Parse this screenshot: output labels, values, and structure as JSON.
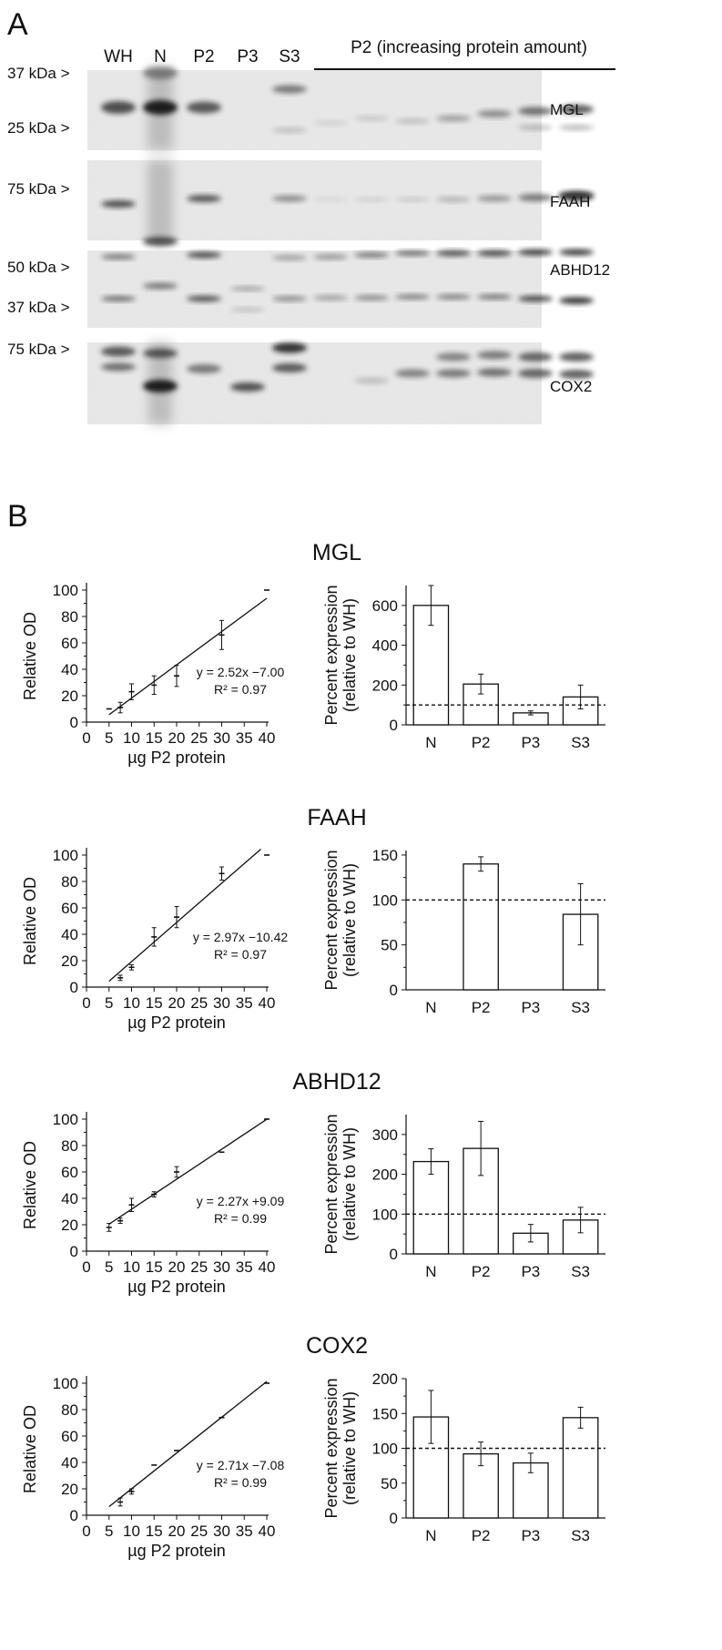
{
  "panelA": {
    "letter": "A",
    "lanes": [
      "WH",
      "N",
      "P2",
      "P3",
      "S3"
    ],
    "p2_header": "P2 (increasing protein amount)",
    "blots": [
      {
        "protein": "MGL",
        "markers": [
          "37 kDa >",
          "25 kDa >"
        ]
      },
      {
        "protein": "FAAH",
        "markers": [
          "75 kDa >"
        ]
      },
      {
        "protein": "ABHD12",
        "markers": [
          "50 kDa >",
          "37 kDa >"
        ]
      },
      {
        "protein": "COX2",
        "markers": [
          "75 kDa >"
        ]
      }
    ]
  },
  "panelB": {
    "letter": "B"
  },
  "chart_data": [
    {
      "protein": "MGL",
      "title": "MGL",
      "line_chart": {
        "type": "scatter",
        "xlabel": "µg P2 protein",
        "ylabel": "Relative OD",
        "xlim": [
          0,
          40
        ],
        "ylim": [
          0,
          100
        ],
        "xticks": [
          0,
          5,
          10,
          15,
          20,
          25,
          30,
          35,
          40
        ],
        "yticks": [
          0,
          20,
          40,
          60,
          80,
          100
        ],
        "points": [
          {
            "x": 5,
            "y": 10,
            "err": 0
          },
          {
            "x": 7.5,
            "y": 11,
            "err": 4
          },
          {
            "x": 10,
            "y": 23,
            "err": 6
          },
          {
            "x": 15,
            "y": 28,
            "err": 7
          },
          {
            "x": 20,
            "y": 35,
            "err": 8
          },
          {
            "x": 30,
            "y": 66,
            "err": 11
          },
          {
            "x": 40,
            "y": 100,
            "err": 0
          }
        ],
        "fit": {
          "slope": 2.52,
          "intercept": -7.0,
          "x_range": [
            5,
            40
          ]
        },
        "equation": "y = 2.52x −7.00",
        "r2": "R² = 0.97"
      },
      "bar_chart": {
        "type": "bar",
        "ylabel": "Percent expression\n(relative to WH)",
        "categories": [
          "N",
          "P2",
          "P3",
          "S3"
        ],
        "values": [
          600,
          205,
          60,
          140
        ],
        "errors": [
          100,
          50,
          10,
          60
        ],
        "ylim": [
          0,
          700
        ],
        "yticks": [
          0,
          200,
          400,
          600
        ],
        "reference_line": 100
      }
    },
    {
      "protein": "FAAH",
      "title": "FAAH",
      "line_chart": {
        "type": "scatter",
        "xlabel": "µg P2 protein",
        "ylabel": "Relative OD",
        "xlim": [
          0,
          40
        ],
        "ylim": [
          0,
          100
        ],
        "xticks": [
          0,
          5,
          10,
          15,
          20,
          25,
          30,
          35,
          40
        ],
        "yticks": [
          0,
          20,
          40,
          60,
          80,
          100
        ],
        "points": [
          {
            "x": 7.5,
            "y": 7,
            "err": 2
          },
          {
            "x": 10,
            "y": 15,
            "err": 2
          },
          {
            "x": 15,
            "y": 38,
            "err": 7
          },
          {
            "x": 20,
            "y": 53,
            "err": 8
          },
          {
            "x": 30,
            "y": 86,
            "err": 5
          },
          {
            "x": 40,
            "y": 100,
            "err": 0
          }
        ],
        "fit": {
          "slope": 2.97,
          "intercept": -10.42,
          "x_range": [
            5,
            38.7
          ]
        },
        "equation": "y = 2.97x −10.42",
        "r2": "R² = 0.97"
      },
      "bar_chart": {
        "type": "bar",
        "ylabel": "Percent expression\n(relative to WH)",
        "categories": [
          "N",
          "P2",
          "P3",
          "S3"
        ],
        "values": [
          null,
          140,
          null,
          84
        ],
        "errors": [
          null,
          8,
          null,
          34
        ],
        "ylim": [
          0,
          155
        ],
        "yticks": [
          0,
          50,
          100,
          150
        ],
        "reference_line": 100
      }
    },
    {
      "protein": "ABHD12",
      "title": "ABHD12",
      "line_chart": {
        "type": "scatter",
        "xlabel": "µg P2 protein",
        "ylabel": "Relative OD",
        "xlim": [
          0,
          40
        ],
        "ylim": [
          0,
          100
        ],
        "xticks": [
          0,
          5,
          10,
          15,
          20,
          25,
          30,
          35,
          40
        ],
        "yticks": [
          0,
          20,
          40,
          60,
          80,
          100
        ],
        "points": [
          {
            "x": 5,
            "y": 18,
            "err": 3
          },
          {
            "x": 7.5,
            "y": 23,
            "err": 2
          },
          {
            "x": 10,
            "y": 35,
            "err": 5
          },
          {
            "x": 15,
            "y": 43,
            "err": 2
          },
          {
            "x": 20,
            "y": 60,
            "err": 4
          },
          {
            "x": 30,
            "y": 75,
            "err": 0
          },
          {
            "x": 40,
            "y": 100,
            "err": 0
          }
        ],
        "fit": {
          "slope": 2.27,
          "intercept": 9.09,
          "x_range": [
            5,
            40
          ]
        },
        "equation": "y = 2.27x +9.09",
        "r2": "R² = 0.99"
      },
      "bar_chart": {
        "type": "bar",
        "ylabel": "Percent expression\n(relative to WH)",
        "categories": [
          "N",
          "P2",
          "P3",
          "S3"
        ],
        "values": [
          232,
          265,
          52,
          85
        ],
        "errors": [
          32,
          68,
          22,
          32
        ],
        "ylim": [
          0,
          350
        ],
        "yticks": [
          0,
          100,
          200,
          300
        ],
        "reference_line": 100
      }
    },
    {
      "protein": "COX2",
      "title": "COX2",
      "line_chart": {
        "type": "scatter",
        "xlabel": "µg P2 protein",
        "ylabel": "Relative OD",
        "xlim": [
          0,
          40
        ],
        "ylim": [
          0,
          100
        ],
        "xticks": [
          0,
          5,
          10,
          15,
          20,
          25,
          30,
          35,
          40
        ],
        "yticks": [
          0,
          20,
          40,
          60,
          80,
          100
        ],
        "points": [
          {
            "x": 7.5,
            "y": 10,
            "err": 3
          },
          {
            "x": 10,
            "y": 18,
            "err": 2
          },
          {
            "x": 15,
            "y": 38,
            "err": 0
          },
          {
            "x": 20,
            "y": 49,
            "err": 0
          },
          {
            "x": 30,
            "y": 74,
            "err": 0
          },
          {
            "x": 40,
            "y": 100,
            "err": 0
          }
        ],
        "fit": {
          "slope": 2.71,
          "intercept": -7.08,
          "x_range": [
            5,
            40
          ]
        },
        "equation": "y = 2.71x −7.08",
        "r2": "R² = 0.99"
      },
      "bar_chart": {
        "type": "bar",
        "ylabel": "Percent expression\n(relative to WH)",
        "categories": [
          "N",
          "P2",
          "P3",
          "S3"
        ],
        "values": [
          145,
          92,
          79,
          144
        ],
        "errors": [
          38,
          17,
          14,
          15
        ],
        "ylim": [
          0,
          200
        ],
        "yticks": [
          0,
          50,
          100,
          150,
          200
        ],
        "reference_line": 100
      }
    }
  ]
}
